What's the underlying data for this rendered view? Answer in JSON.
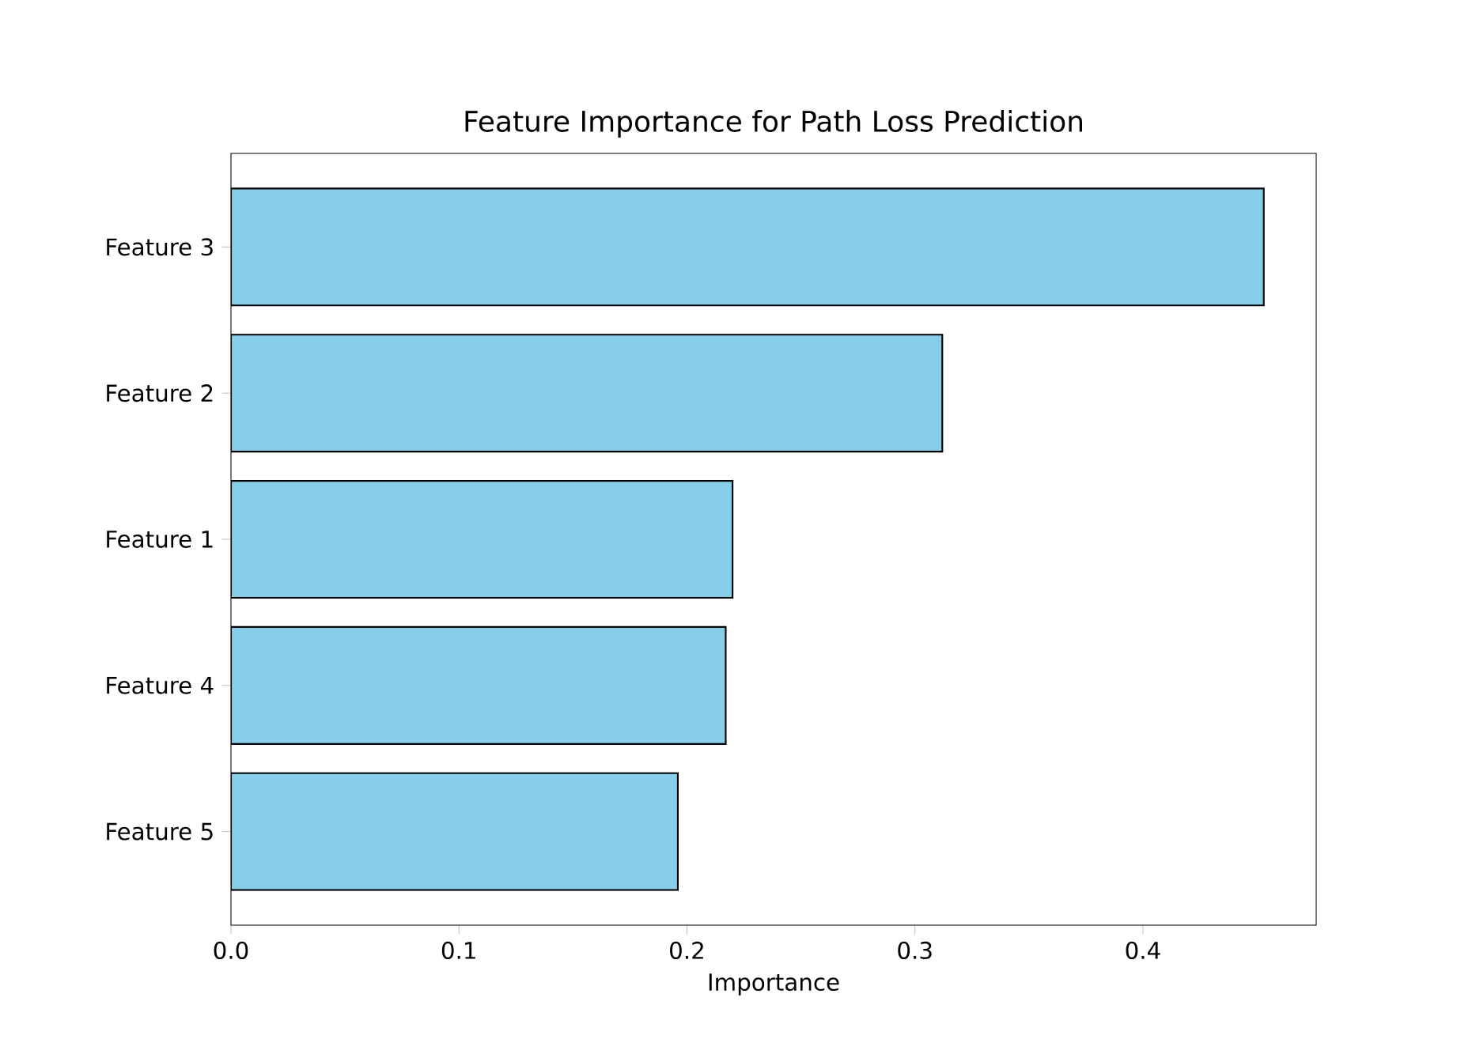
{
  "chart_data": {
    "type": "bar",
    "orientation": "horizontal",
    "title": "Feature Importance for Path Loss Prediction",
    "xlabel": "Importance",
    "categories": [
      "Feature 3",
      "Feature 2",
      "Feature 1",
      "Feature 4",
      "Feature 5"
    ],
    "values": [
      0.453,
      0.312,
      0.22,
      0.217,
      0.196
    ],
    "color": "#87ceeb",
    "xlim": [
      0,
      0.476
    ],
    "xticks": [
      {
        "value": 0,
        "label": "0.0"
      },
      0.1,
      0.2,
      0.3,
      0.4
    ],
    "grid": false
  }
}
